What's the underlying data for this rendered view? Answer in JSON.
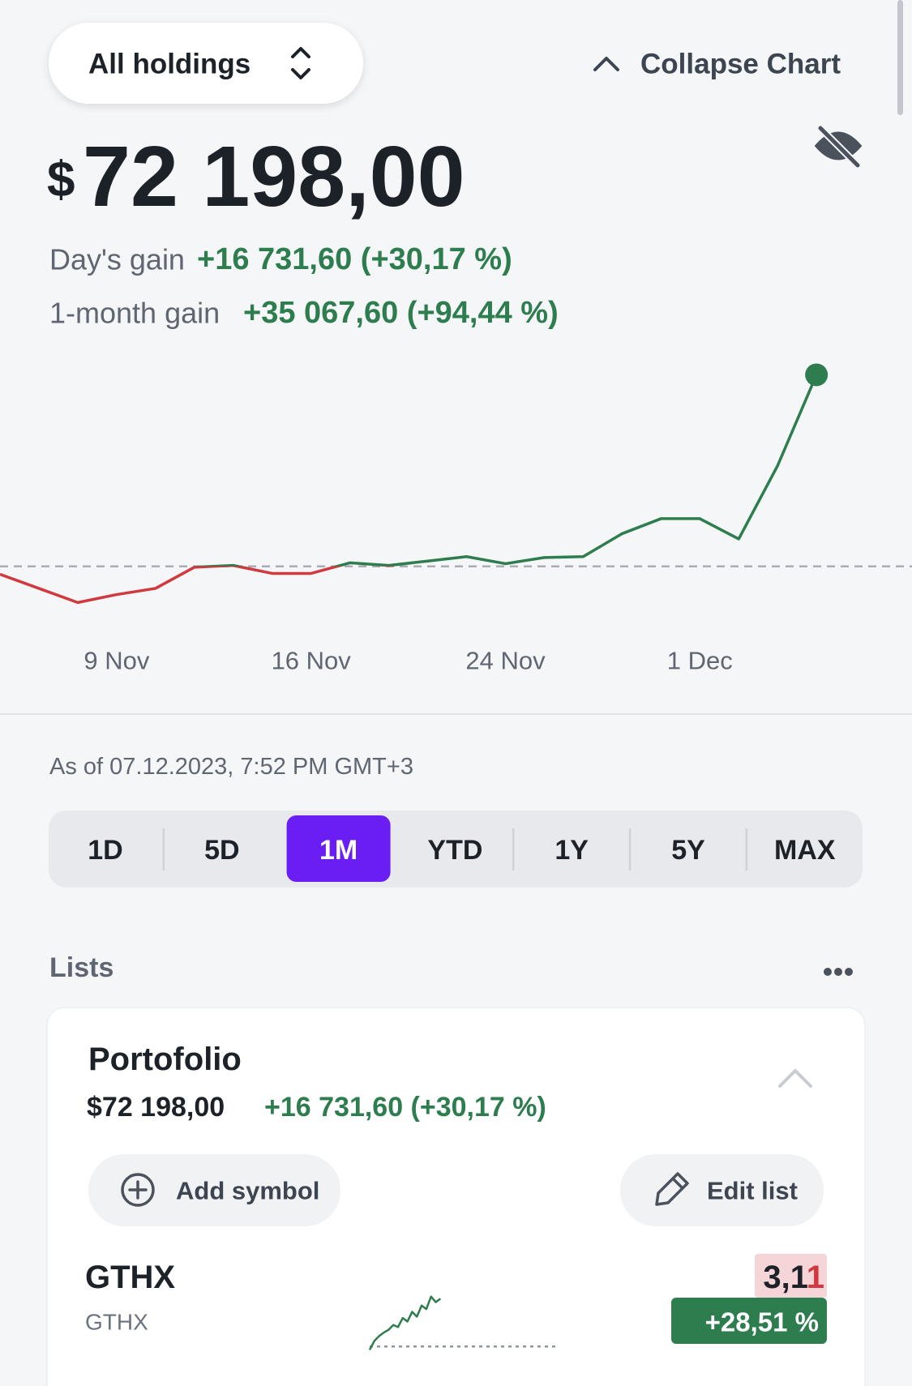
{
  "header": {
    "selector": "All holdings",
    "collapse": "Collapse Chart"
  },
  "summary": {
    "currency": "$",
    "value": "72 198,00",
    "day_gain_label": "Day's gain",
    "day_gain": "+16 731,60 (+30,17 %)",
    "month_gain_label": "1-month gain",
    "month_gain": "+35 067,60 (+94,44 %)"
  },
  "chart_data": [
    {
      "type": "line",
      "categories": [
        null,
        null,
        null,
        "9 Nov",
        null,
        null,
        null,
        null,
        "16 Nov",
        null,
        null,
        null,
        null,
        "24 Nov",
        null,
        null,
        null,
        null,
        "1 Dec",
        null,
        null,
        null
      ],
      "values": [
        36829,
        34325,
        31821,
        33229,
        34325,
        38081,
        38394,
        36985,
        36985,
        38863,
        38394,
        39176,
        39959,
        38707,
        39802,
        39959,
        44028,
        46688,
        46688,
        43089,
        56078,
        72198
      ],
      "baseline": 38237,
      "ylim": [
        29000,
        76000
      ],
      "up_color": "#2e7d4f",
      "down_color": "#d0393e",
      "end_marker": true
    },
    {
      "type": "sparkline",
      "x": [
        0,
        1,
        2,
        3,
        4,
        5,
        6,
        7,
        8,
        9,
        10,
        11,
        12,
        13,
        14,
        15
      ],
      "values": [
        2.37,
        2.5,
        2.57,
        2.62,
        2.66,
        2.73,
        2.7,
        2.83,
        2.78,
        2.92,
        2.85,
        3.01,
        2.96,
        3.14,
        3.06,
        3.11
      ],
      "baseline": 2.42,
      "xlim": [
        0,
        40
      ],
      "ylim": [
        2.2,
        3.3
      ],
      "color": "#2e7d4f"
    }
  ],
  "as_of": "As of 07.12.2023, 7:52 PM GMT+3",
  "ranges": {
    "options": [
      "1D",
      "5D",
      "1M",
      "YTD",
      "1Y",
      "5Y",
      "MAX"
    ],
    "selected": 2
  },
  "lists": {
    "title": "Lists",
    "portfolio": {
      "name": "Portofolio",
      "value": "$72 198,00",
      "gain": "+16 731,60 (+30,17 %)",
      "add": "Add symbol",
      "edit": "Edit list",
      "items": [
        {
          "symbol": "GTHX",
          "name": "GTHX",
          "price_unchanged": "3,1",
          "price_changed": "1",
          "change": "+28,51 %"
        }
      ]
    }
  }
}
